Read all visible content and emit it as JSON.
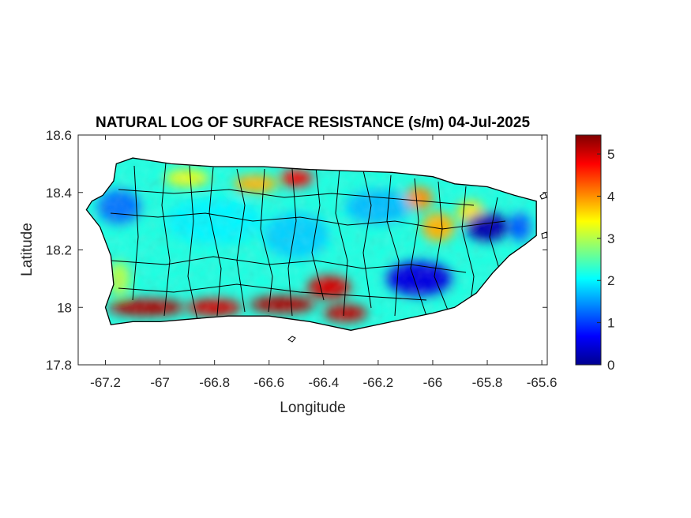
{
  "title": "NATURAL LOG OF SURFACE RESISTANCE (s/m) 04-Jul-2025",
  "map": {
    "xlabel": "Longitude",
    "ylabel": "Latitude",
    "xlim": [
      -67.3,
      -65.58
    ],
    "ylim": [
      17.8,
      18.6
    ],
    "xticks": [
      -67.2,
      -67,
      -66.8,
      -66.6,
      -66.4,
      -66.2,
      -66,
      -65.8,
      -65.6
    ],
    "xtick_labels": [
      "-67.2",
      "-67",
      "-66.8",
      "-66.6",
      "-66.4",
      "-66.2",
      "-66",
      "-65.8",
      "-65.6"
    ],
    "yticks": [
      17.8,
      18,
      18.2,
      18.4,
      18.6
    ],
    "ytick_labels": [
      "17.8",
      "18",
      "18.2",
      "18.4",
      "18.6"
    ],
    "region": "Puerto Rico",
    "colormap": "jet",
    "island_outline": [
      [
        -67.25,
        18.37
      ],
      [
        -67.21,
        18.39
      ],
      [
        -67.17,
        18.44
      ],
      [
        -67.16,
        18.5
      ],
      [
        -67.1,
        18.52
      ],
      [
        -66.96,
        18.5
      ],
      [
        -66.8,
        18.49
      ],
      [
        -66.62,
        18.49
      ],
      [
        -66.45,
        18.48
      ],
      [
        -66.3,
        18.475
      ],
      [
        -66.15,
        18.47
      ],
      [
        -66.0,
        18.455
      ],
      [
        -65.92,
        18.43
      ],
      [
        -65.8,
        18.42
      ],
      [
        -65.7,
        18.39
      ],
      [
        -65.62,
        18.37
      ],
      [
        -65.62,
        18.3
      ],
      [
        -65.62,
        18.25
      ],
      [
        -65.66,
        18.22
      ],
      [
        -65.72,
        18.18
      ],
      [
        -65.78,
        18.12
      ],
      [
        -65.84,
        18.05
      ],
      [
        -65.92,
        18.0
      ],
      [
        -66.0,
        17.98
      ],
      [
        -66.15,
        17.95
      ],
      [
        -66.3,
        17.92
      ],
      [
        -66.45,
        17.95
      ],
      [
        -66.6,
        17.97
      ],
      [
        -66.75,
        17.97
      ],
      [
        -66.88,
        17.96
      ],
      [
        -67.0,
        17.95
      ],
      [
        -67.1,
        17.95
      ],
      [
        -67.18,
        17.94
      ],
      [
        -67.2,
        18.0
      ],
      [
        -67.17,
        18.08
      ],
      [
        -67.18,
        18.18
      ],
      [
        -67.22,
        18.28
      ],
      [
        -67.27,
        18.34
      ]
    ],
    "field_blobs": [
      {
        "lon": -67.05,
        "lat": 18.0,
        "rx": 0.14,
        "ry": 0.03,
        "value": 5.2
      },
      {
        "lon": -66.8,
        "lat": 18.0,
        "rx": 0.1,
        "ry": 0.03,
        "value": 5.0
      },
      {
        "lon": -66.55,
        "lat": 18.01,
        "rx": 0.12,
        "ry": 0.03,
        "value": 5.2
      },
      {
        "lon": -66.38,
        "lat": 18.07,
        "rx": 0.08,
        "ry": 0.04,
        "value": 5.0
      },
      {
        "lon": -66.32,
        "lat": 17.98,
        "rx": 0.08,
        "ry": 0.03,
        "value": 5.1
      },
      {
        "lon": -66.5,
        "lat": 18.45,
        "rx": 0.06,
        "ry": 0.03,
        "value": 4.8
      },
      {
        "lon": -66.65,
        "lat": 18.43,
        "rx": 0.08,
        "ry": 0.03,
        "value": 3.8
      },
      {
        "lon": -66.9,
        "lat": 18.45,
        "rx": 0.08,
        "ry": 0.03,
        "value": 3.3
      },
      {
        "lon": -65.98,
        "lat": 18.28,
        "rx": 0.06,
        "ry": 0.05,
        "value": 3.8
      },
      {
        "lon": -66.05,
        "lat": 18.38,
        "rx": 0.05,
        "ry": 0.04,
        "value": 4.0
      },
      {
        "lon": -65.86,
        "lat": 18.33,
        "rx": 0.05,
        "ry": 0.04,
        "value": 3.5
      },
      {
        "lon": -67.15,
        "lat": 18.1,
        "rx": 0.04,
        "ry": 0.06,
        "value": 3.0
      },
      {
        "lon": -66.8,
        "lat": 18.3,
        "rx": 0.18,
        "ry": 0.08,
        "value": 2.0
      },
      {
        "lon": -66.5,
        "lat": 18.25,
        "rx": 0.12,
        "ry": 0.08,
        "value": 1.8
      },
      {
        "lon": -66.2,
        "lat": 18.35,
        "rx": 0.12,
        "ry": 0.06,
        "value": 1.7
      },
      {
        "lon": -67.15,
        "lat": 18.35,
        "rx": 0.08,
        "ry": 0.06,
        "value": 1.3
      },
      {
        "lon": -66.05,
        "lat": 18.1,
        "rx": 0.12,
        "ry": 0.06,
        "value": 0.5
      },
      {
        "lon": -65.8,
        "lat": 18.28,
        "rx": 0.08,
        "ry": 0.05,
        "value": 0.2
      },
      {
        "lon": -65.68,
        "lat": 18.28,
        "rx": 0.04,
        "ry": 0.05,
        "value": 1.2
      }
    ],
    "base_value": 2.2
  },
  "colorbar": {
    "min": 0,
    "max": 5.45,
    "ticks": [
      0,
      1,
      2,
      3,
      4,
      5
    ],
    "tick_labels": [
      "0",
      "1",
      "2",
      "3",
      "4",
      "5"
    ]
  }
}
